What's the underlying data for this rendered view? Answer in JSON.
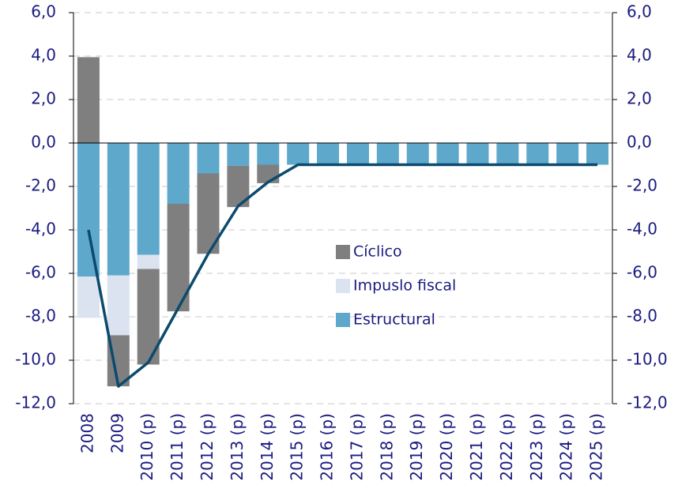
{
  "chart_data": {
    "type": "stacked-bar-line",
    "categories": [
      "2008",
      "2009",
      "2010 (p)",
      "2011 (p)",
      "2012 (p)",
      "2013 (p)",
      "2014 (p)",
      "2015 (p)",
      "2016 (p)",
      "2017 (p)",
      "2018 (p)",
      "2019 (p)",
      "2020 (p)",
      "2021 (p)",
      "2022 (p)",
      "2023 (p)",
      "2024 (p)",
      "2025 (p)"
    ],
    "series": [
      {
        "name": "Cíclico",
        "color": "#7f7f7f",
        "values": [
          3.95,
          -2.35,
          -4.4,
          -4.95,
          -3.7,
          -1.9,
          -0.85,
          0,
          0,
          0,
          0,
          0,
          0,
          0,
          0,
          0,
          0,
          0
        ]
      },
      {
        "name": "Impuslo fiscal",
        "color": "#dbe3f1",
        "values": [
          -1.9,
          -2.75,
          -0.65,
          0,
          0,
          0,
          0,
          0,
          0,
          0,
          0,
          0,
          0,
          0,
          0,
          0,
          0,
          0
        ]
      },
      {
        "name": "Estructural",
        "color": "#5ea8cc",
        "values": [
          -6.15,
          -6.1,
          -5.15,
          -2.8,
          -1.4,
          -1.05,
          -1.0,
          -1.0,
          -1.0,
          -1.0,
          -1.0,
          -1.0,
          -1.0,
          -1.0,
          -1.0,
          -1.0,
          -1.0,
          -1.0
        ]
      }
    ],
    "line": {
      "color": "#0c4a6e",
      "values": [
        -4.0,
        -11.2,
        -10.1,
        -7.6,
        -5.1,
        -2.9,
        -1.8,
        -1.0,
        -1.0,
        -1.0,
        -1.0,
        -1.0,
        -1.0,
        -1.0,
        -1.0,
        -1.0,
        -1.0,
        -1.0
      ]
    },
    "ylim": [
      -12,
      6
    ],
    "yticks": [
      {
        "value": -12,
        "label": "-12,0"
      },
      {
        "value": -10,
        "label": "-10,0"
      },
      {
        "value": -8,
        "label": "-8,0"
      },
      {
        "value": -6,
        "label": "-6,0"
      },
      {
        "value": -4,
        "label": "-4,0"
      },
      {
        "value": -2,
        "label": "-2,0"
      },
      {
        "value": 0,
        "label": "0,0"
      },
      {
        "value": 2,
        "label": "2,0"
      },
      {
        "value": 4,
        "label": "4,0"
      },
      {
        "value": 6,
        "label": "6,0"
      }
    ],
    "y2lim": [
      -12,
      6
    ],
    "y2ticks": [
      {
        "value": -12,
        "label": "-12,0"
      },
      {
        "value": -10,
        "label": "-10,0"
      },
      {
        "value": -8,
        "label": "-8,0"
      },
      {
        "value": -6,
        "label": "-6,0"
      },
      {
        "value": -4,
        "label": "-4,0"
      },
      {
        "value": -2,
        "label": "-2,0"
      },
      {
        "value": 0,
        "label": "0,0"
      },
      {
        "value": 2,
        "label": "2,0"
      },
      {
        "value": 4,
        "label": "4,0"
      },
      {
        "value": 6,
        "label": "6,0"
      }
    ],
    "grid": true,
    "legend_position": "center"
  }
}
